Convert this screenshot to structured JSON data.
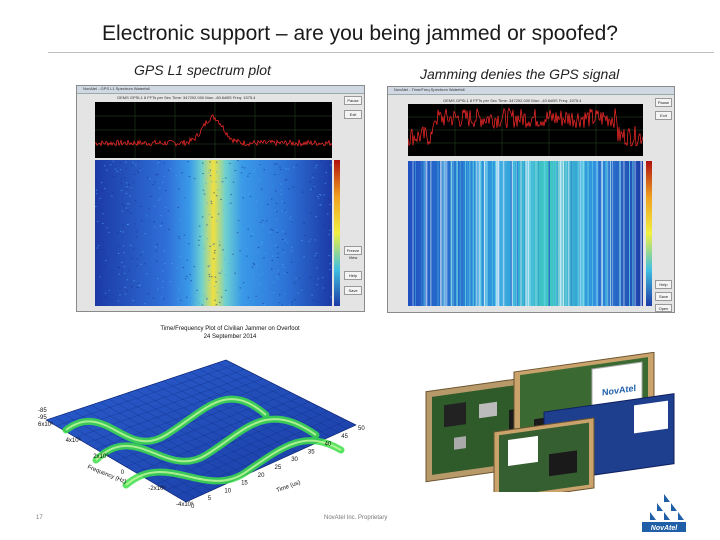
{
  "slide": {
    "title": "Electronic support – are you being jammed or spoofed?",
    "left_caption": "GPS L1 spectrum plot",
    "right_caption": "Jamming denies the GPS signal",
    "page_number": "17",
    "footer": "NovAtel Inc. Proprietary",
    "logo_text": "NovAtel"
  },
  "left_window": {
    "titlebar": "NovAtel - GPS L1 Spectrum Waterfall",
    "header": "GEMS   GPSL1   8 FFTs per Sec   Time: 347292.000   Max: -80.6dBS   Freq: 1575.4",
    "buttons": [
      "Pause",
      "Exit",
      "Help",
      "Save",
      "Freeze View"
    ]
  },
  "right_window": {
    "titlebar": "NovAtel - Time/Freq Spectrum Waterfall",
    "header": "GEMS   GPSL1   8 FFTs per Sec   Time: 347292.000   Max: -40.6dBS   Freq: 1575.4",
    "buttons": [
      "Pause",
      "Exit",
      "Help",
      "Save",
      "Open"
    ]
  },
  "plot3d": {
    "title": "Time/Frequency Plot of Civilian Jammer on Overfoot",
    "subtitle": "24 September 2014",
    "xlabel": "Time (us)",
    "ylabel": "Frequency (Hz)",
    "xticks": [
      "0",
      "5",
      "10",
      "15",
      "20",
      "25",
      "30",
      "35",
      "40",
      "45",
      "50"
    ],
    "yticks": [
      "-4x10⁶",
      "-2x10⁶",
      "0",
      "2x10⁶",
      "4x10⁶",
      "6x10⁶"
    ],
    "zticks": [
      "-85",
      "-95"
    ]
  },
  "colors": {
    "waterfall_low": "#1a3a9e",
    "waterfall_mid": "#2e8fe0",
    "waterfall_hot": "#e8e040",
    "spectrum_trace": "#ff2020",
    "logo_blue": "#1f5fa8"
  }
}
